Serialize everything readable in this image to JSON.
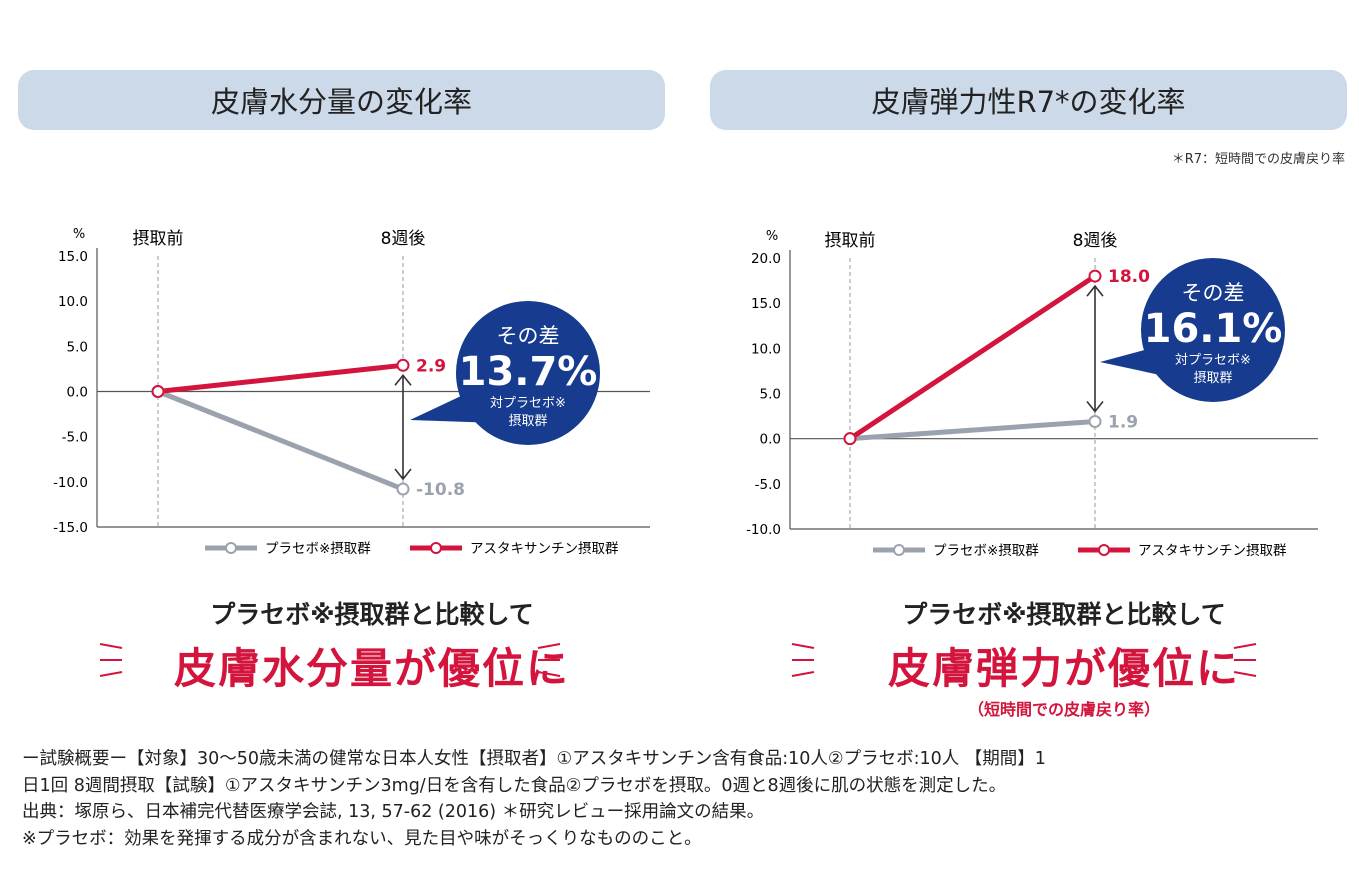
{
  "colors": {
    "placebo": "#9aa3ad",
    "astaxanthin": "#d3143c",
    "bubble": "#173c8f",
    "header_bg": "#ccd9e8"
  },
  "chart_data": [
    {
      "type": "line",
      "title": "皮膚水分量の変化率",
      "ylabel": "%",
      "categories": [
        "摂取前",
        "8週後"
      ],
      "ylim": [
        -15,
        15
      ],
      "yticks": [
        "15.0",
        "10.0",
        "5.0",
        "0.0",
        "-5.0",
        "-10.0",
        "-15.0"
      ],
      "series": [
        {
          "name": "プラセボ※摂取群",
          "values": [
            0,
            -10.8
          ],
          "label": "-10.8"
        },
        {
          "name": "アスタキサンチン摂取群",
          "values": [
            0,
            2.9
          ],
          "label": "2.9"
        }
      ],
      "annotation": {
        "head": "その差",
        "value": "13.7%",
        "sub1": "対プラセボ※",
        "sub2": "摂取群"
      },
      "legend": "bottom-right",
      "grid": false
    },
    {
      "type": "line",
      "title": "皮膚弾力性R7*の変化率",
      "ylabel": "%",
      "categories": [
        "摂取前",
        "8週後"
      ],
      "ylim": [
        -10,
        20
      ],
      "yticks": [
        "20.0",
        "15.0",
        "10.0",
        "5.0",
        "0.0",
        "-5.0",
        "-10.0"
      ],
      "series": [
        {
          "name": "プラセボ※摂取群",
          "values": [
            0,
            1.9
          ],
          "label": "1.9"
        },
        {
          "name": "アスタキサンチン摂取群",
          "values": [
            0,
            18.0
          ],
          "label": "18.0"
        }
      ],
      "annotation": {
        "head": "その差",
        "value": "16.1%",
        "sub1": "対プラセボ※",
        "sub2": "摂取群"
      },
      "legend": "bottom-right",
      "grid": false
    }
  ],
  "note": "＊R7：短時間での皮膚戻り率",
  "comparison": [
    {
      "line1": "プラセボ※摂取群と比較して",
      "line2": "皮膚水分量が優位に"
    },
    {
      "line1": "プラセボ※摂取群と比較して",
      "line2": "皮膚弾力が優位に",
      "line3": "（短時間での皮膚戻り率）"
    }
  ],
  "footer": [
    "ー試験概要ー【対象】30～50歳未満の健常な日本人女性【摂取者】①アスタキサンチン含有食品:10人②プラセボ:10人 【期間】1",
    "日1回 8週間摂取【試験】①アスタキサンチン3mg/日を含有した食品②プラセボを摂取。0週と8週後に肌の状態を測定した。",
    "出典：塚原ら、日本補完代替医療学会誌, 13, 57-62 (2016) ＊研究レビュー採用論文の結果。",
    "※プラセボ：効果を発揮する成分が含まれない、見た目や味がそっくりなもののこと。"
  ]
}
